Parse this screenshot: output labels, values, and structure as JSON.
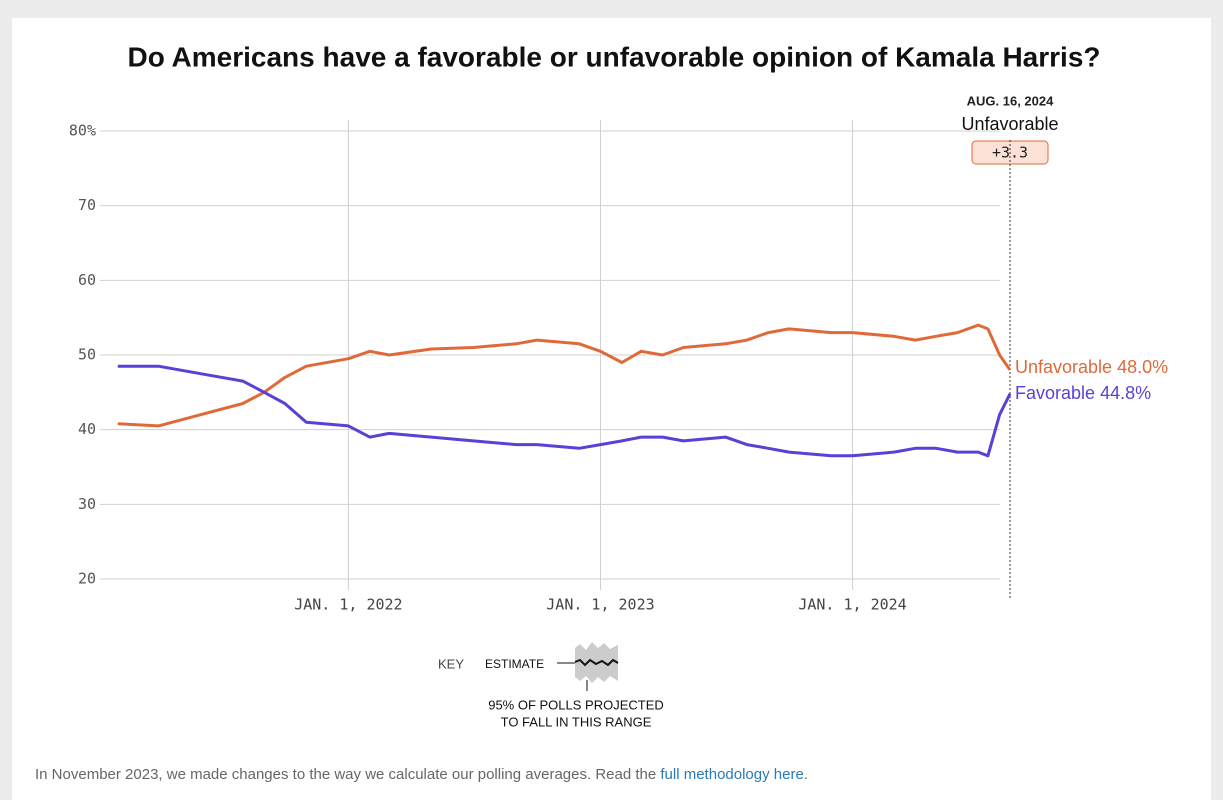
{
  "chart_data": {
    "type": "line",
    "title": "Do Americans have a favorable or unfavorable opinion of Kamala Harris?",
    "x": [
      "2021-02-01",
      "2021-04-01",
      "2021-06-01",
      "2021-08-01",
      "2021-09-01",
      "2021-10-01",
      "2021-11-01",
      "2022-01-01",
      "2022-02-01",
      "2022-03-01",
      "2022-05-01",
      "2022-07-01",
      "2022-09-01",
      "2022-10-01",
      "2022-12-01",
      "2023-01-01",
      "2023-02-01",
      "2023-03-01",
      "2023-04-01",
      "2023-05-01",
      "2023-07-01",
      "2023-08-01",
      "2023-09-01",
      "2023-10-01",
      "2023-12-01",
      "2024-01-01",
      "2024-03-01",
      "2024-04-01",
      "2024-05-01",
      "2024-06-01",
      "2024-07-01",
      "2024-07-15",
      "2024-08-01",
      "2024-08-16"
    ],
    "series": [
      {
        "name": "Unfavorable",
        "color": "#e0693a",
        "last_label": "48.0%",
        "values": [
          40.8,
          40.5,
          42,
          43.5,
          45,
          47,
          48.5,
          49.5,
          50.5,
          50,
          50.8,
          51,
          51.5,
          52,
          51.5,
          50.5,
          49,
          50.5,
          50,
          51,
          51.5,
          52,
          53,
          53.5,
          53,
          53,
          52.5,
          52,
          52.5,
          53,
          54,
          53.5,
          50,
          48.0
        ]
      },
      {
        "name": "Favorable",
        "color": "#5b3fd6",
        "last_label": "44.8%",
        "values": [
          48.5,
          48.5,
          47.5,
          46.5,
          45,
          43.5,
          41,
          40.5,
          39,
          39.5,
          39,
          38.5,
          38,
          38,
          37.5,
          38,
          38.5,
          39,
          39,
          38.5,
          39,
          38,
          37.5,
          37,
          36.5,
          36.5,
          37,
          37.5,
          37.5,
          37,
          37,
          36.5,
          42,
          44.8
        ]
      }
    ],
    "xlim": [
      "2021-01-28",
      "2024-08-16"
    ],
    "xticks": [
      {
        "value": "2022-01-01",
        "label": "JAN. 1, 2022"
      },
      {
        "value": "2023-01-01",
        "label": "JAN. 1, 2023"
      },
      {
        "value": "2024-01-01",
        "label": "JAN. 1, 2024"
      }
    ],
    "ylim": [
      20,
      80
    ],
    "yticks": [
      20,
      30,
      40,
      50,
      60,
      70,
      {
        "value": 80,
        "label": "80%"
      }
    ],
    "grid": true,
    "annotation": {
      "date": "AUG. 16, 2024",
      "series": "Unfavorable",
      "margin": "+3.3"
    },
    "key": {
      "title": "KEY",
      "estimate": "ESTIMATE",
      "range": [
        "95% OF POLLS PROJECTED",
        "TO FALL IN THIS RANGE"
      ]
    },
    "footnote": {
      "text": "In November 2023, we made changes to the way we calculate our polling averages. Read the ",
      "link": "full methodology here",
      "end": "."
    }
  }
}
